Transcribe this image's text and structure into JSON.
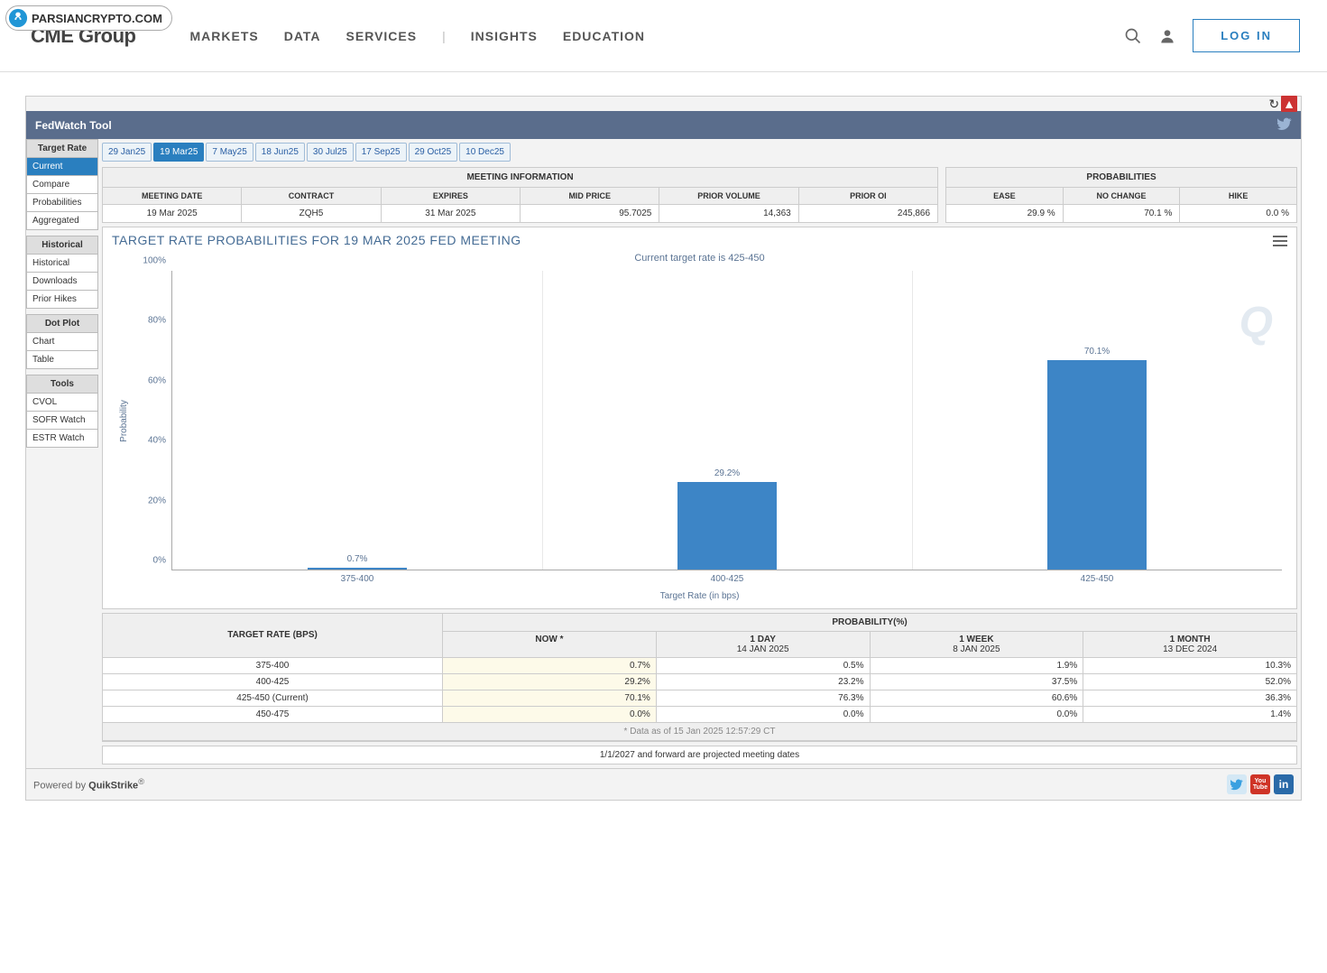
{
  "badge": {
    "text": "PARSIANCRYPTO.COM"
  },
  "brand": "CME Group",
  "nav": {
    "markets": "MARKETS",
    "data": "DATA",
    "services": "SERVICES",
    "insights": "INSIGHTS",
    "education": "EDUCATION"
  },
  "login": "LOG IN",
  "tool_title": "FedWatch Tool",
  "sidebar": {
    "target_rate": {
      "header": "Target Rate",
      "items": [
        "Current",
        "Compare",
        "Probabilities",
        "Aggregated"
      ]
    },
    "historical": {
      "header": "Historical",
      "items": [
        "Historical",
        "Downloads",
        "Prior Hikes"
      ]
    },
    "dot_plot": {
      "header": "Dot Plot",
      "items": [
        "Chart",
        "Table"
      ]
    },
    "tools": {
      "header": "Tools",
      "items": [
        "CVOL",
        "SOFR Watch",
        "ESTR Watch"
      ]
    }
  },
  "date_tabs": [
    "29 Jan25",
    "19 Mar25",
    "7 May25",
    "18 Jun25",
    "30 Jul25",
    "17 Sep25",
    "29 Oct25",
    "10 Dec25"
  ],
  "active_date_tab": 1,
  "meeting_info": {
    "title": "MEETING INFORMATION",
    "cols": [
      "MEETING DATE",
      "CONTRACT",
      "EXPIRES",
      "MID PRICE",
      "PRIOR VOLUME",
      "PRIOR OI"
    ],
    "vals": [
      "19 Mar 2025",
      "ZQH5",
      "31 Mar 2025",
      "95.7025",
      "14,363",
      "245,866"
    ]
  },
  "probs_summary": {
    "title": "PROBABILITIES",
    "cols": [
      "EASE",
      "NO CHANGE",
      "HIKE"
    ],
    "vals": [
      "29.9 %",
      "70.1 %",
      "0.0 %"
    ]
  },
  "chart": {
    "title": "TARGET RATE PROBABILITIES FOR 19 MAR 2025 FED MEETING",
    "subtitle": "Current target rate is 425-450",
    "y_title": "Probability",
    "x_title": "Target Rate (in bps)",
    "y_ticks": [
      "0%",
      "20%",
      "40%",
      "60%",
      "80%",
      "100%"
    ],
    "categories": [
      "375-400",
      "400-425",
      "425-450"
    ],
    "values": [
      0.7,
      29.2,
      70.1
    ],
    "value_labels": [
      "0.7%",
      "29.2%",
      "70.1%"
    ],
    "ymax": 100,
    "bar_color": "#3d85c6",
    "text_color": "#5b7494",
    "grid_color": "#e8e8e8",
    "background_color": "#ffffff",
    "bar_width_pct": 9,
    "watermark": "Q"
  },
  "prob_table": {
    "h1": "TARGET RATE (BPS)",
    "h2": "PROBABILITY(%)",
    "sub": [
      {
        "l1": "NOW",
        "l2": "",
        "star": "*"
      },
      {
        "l1": "1 DAY",
        "l2": "14 JAN 2025"
      },
      {
        "l1": "1 WEEK",
        "l2": "8 JAN 2025"
      },
      {
        "l1": "1 MONTH",
        "l2": "13 DEC 2024"
      }
    ],
    "rows": [
      {
        "label": "375-400",
        "vals": [
          "0.7%",
          "0.5%",
          "1.9%",
          "10.3%"
        ]
      },
      {
        "label": "400-425",
        "vals": [
          "29.2%",
          "23.2%",
          "37.5%",
          "52.0%"
        ]
      },
      {
        "label": "425-450 (Current)",
        "vals": [
          "70.1%",
          "76.3%",
          "60.6%",
          "36.3%"
        ]
      },
      {
        "label": "450-475",
        "vals": [
          "0.0%",
          "0.0%",
          "0.0%",
          "1.4%"
        ]
      }
    ],
    "footnote": "* Data as of 15 Jan 2025 12:57:29 CT",
    "footnote2": "1/1/2027 and forward are projected meeting dates"
  },
  "footer": {
    "powered": "Powered by ",
    "brand": "QuikStrike",
    "reg": "®"
  }
}
